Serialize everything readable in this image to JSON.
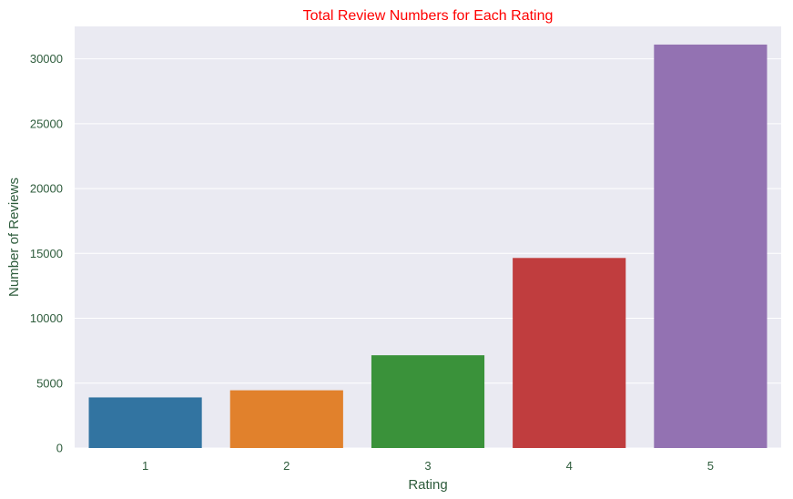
{
  "chart_data": {
    "type": "bar",
    "title": "Total Review Numbers for Each Rating",
    "xlabel": "Rating",
    "ylabel": "Number of Reviews",
    "categories": [
      "1",
      "2",
      "3",
      "4",
      "5"
    ],
    "values": [
      3900,
      4450,
      7150,
      14650,
      31100
    ],
    "ylim": [
      0,
      32500
    ],
    "yticks": [
      0,
      5000,
      10000,
      15000,
      20000,
      25000,
      30000
    ],
    "grid": true,
    "bar_colors": [
      "#3274a1",
      "#e1812c",
      "#3a923a",
      "#c03d3e",
      "#9372b2"
    ],
    "colors": {
      "title": "#ff0000",
      "text": "#2e5c3c",
      "plot_background": "#eaeaf2",
      "grid": "#ffffff"
    }
  }
}
